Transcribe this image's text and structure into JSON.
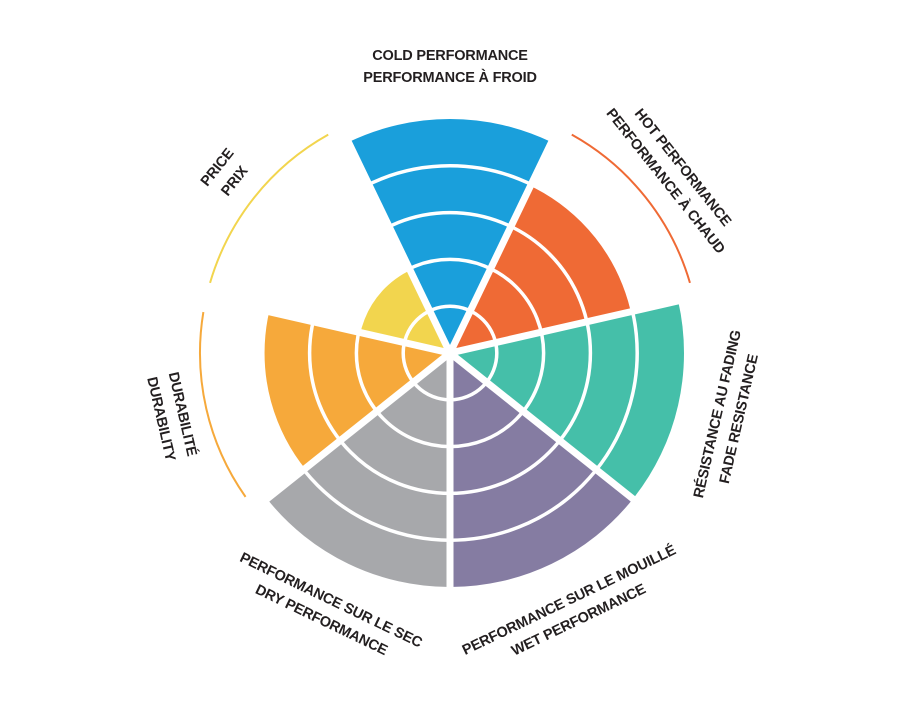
{
  "chart_data": {
    "type": "polar-area",
    "categories": [
      [
        "COLD PERFORMANCE",
        "PERFORMANCE À FROID"
      ],
      [
        "HOT PERFORMANCE",
        "PERFORMANCE À CHAUD"
      ],
      [
        "RÉSISTANCE AU FADING",
        "FADE RESISTANCE"
      ],
      [
        "PERFORMANCE SUR LE MOUILLÉ",
        "WET PERFORMANCE"
      ],
      [
        "PERFORMANCE SUR LE SEC",
        "DRY PERFORMANCE"
      ],
      [
        "DURABILITÉ",
        "DURABILITY"
      ],
      [
        "PRICE",
        "PRIX"
      ]
    ],
    "values": [
      5,
      4,
      5,
      5,
      5,
      4,
      2
    ],
    "colors": [
      "#1a9fdb",
      "#ef6a35",
      "#45bfa9",
      "#857ca2",
      "#a7a8ab",
      "#f6a93b",
      "#f2d54e"
    ],
    "ylim": [
      0,
      5
    ],
    "yticks": [
      1,
      2,
      3,
      4,
      5
    ]
  }
}
